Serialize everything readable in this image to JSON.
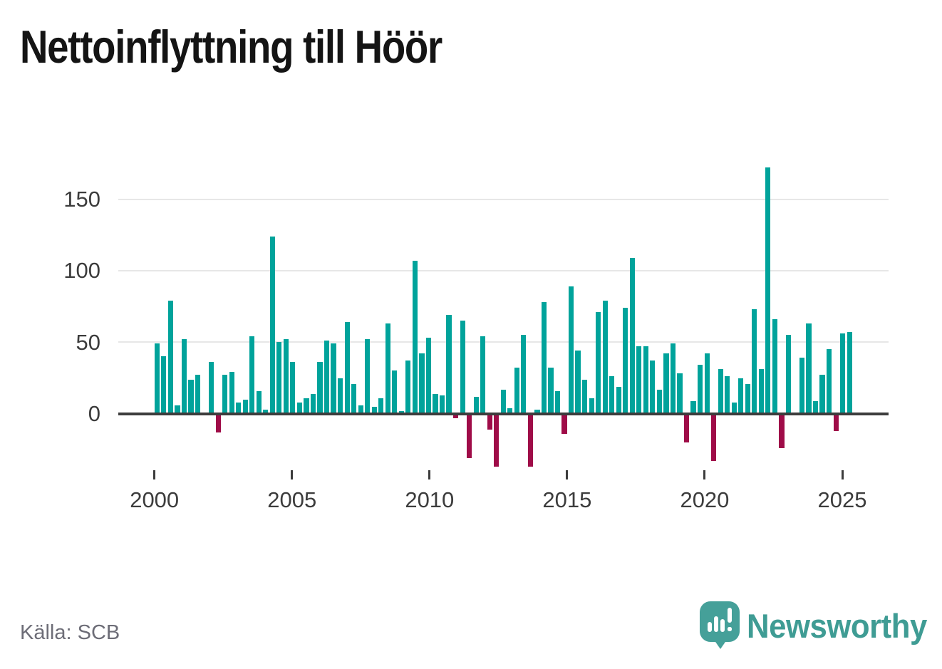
{
  "title": "Nettoinflyttning till Höör",
  "source": "Källa: SCB",
  "logo": {
    "brand": "Newsworthy",
    "color": "#3f9c94",
    "bubble_color": "#45a099"
  },
  "chart_data": {
    "type": "bar",
    "title": "Nettoinflyttning till Höör",
    "x_unit": "quarter",
    "period_start": "2000 Q1",
    "period_end": "2025 Q3",
    "values": [
      49,
      40,
      79,
      6,
      52,
      24,
      27,
      0,
      36,
      -12,
      27,
      29,
      8,
      10,
      54,
      16,
      3,
      124,
      50,
      52,
      36,
      8,
      11,
      14,
      36,
      51,
      49,
      25,
      64,
      21,
      6,
      52,
      5,
      11,
      63,
      30,
      2,
      37,
      107,
      42,
      53,
      14,
      13,
      69,
      -2,
      65,
      -30,
      12,
      54,
      -10,
      -36,
      17,
      4,
      32,
      55,
      -36,
      3,
      78,
      32,
      16,
      -13,
      89,
      44,
      24,
      11,
      71,
      79,
      26,
      19,
      74,
      109,
      47,
      47,
      37,
      17,
      42,
      49,
      28,
      -19,
      9,
      34,
      42,
      -32,
      31,
      26,
      8,
      25,
      21,
      73,
      31,
      172,
      66,
      -23,
      55,
      0,
      39,
      63,
      9,
      27,
      45,
      -11,
      56,
      57
    ],
    "x_tick_labels": [
      "2000",
      "2005",
      "2010",
      "2015",
      "2020",
      "2025"
    ],
    "y_tick_labels": [
      "0",
      "50",
      "100",
      "150"
    ],
    "y_ticks": [
      0,
      50,
      100,
      150
    ],
    "ylim": [
      -40,
      175
    ],
    "grid": "horizontal",
    "legend": "none",
    "positive_color": "#00a39b",
    "negative_color": "#9f0c48",
    "gridline_color": "#e7e7e7",
    "axis_color": "#3d3d3d",
    "label_color": "#3c3c3c"
  }
}
